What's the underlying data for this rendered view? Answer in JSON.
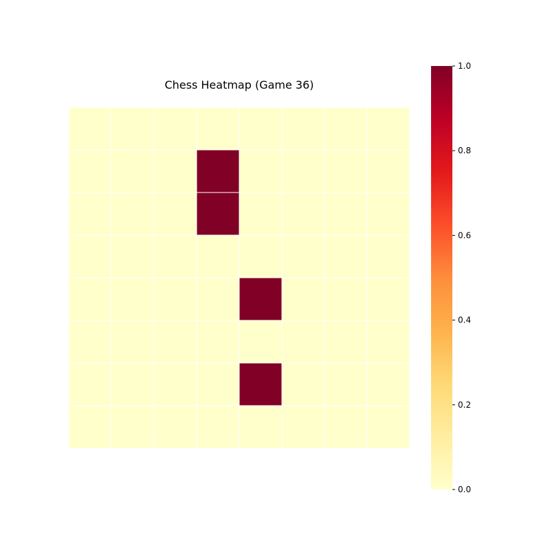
{
  "chart_data": {
    "type": "heatmap",
    "title": "Chess Heatmap (Game 36)",
    "rows": 8,
    "cols": 8,
    "values": [
      [
        0,
        0,
        0,
        0,
        0,
        0,
        0,
        0
      ],
      [
        0,
        0,
        0,
        1,
        0,
        0,
        0,
        0
      ],
      [
        0,
        0,
        0,
        1,
        0,
        0,
        0,
        0
      ],
      [
        0,
        0,
        0,
        0,
        0,
        0,
        0,
        0
      ],
      [
        0,
        0,
        0,
        0,
        1,
        0,
        0,
        0
      ],
      [
        0,
        0,
        0,
        0,
        0,
        0,
        0,
        0
      ],
      [
        0,
        0,
        0,
        0,
        1,
        0,
        0,
        0
      ],
      [
        0,
        0,
        0,
        0,
        0,
        0,
        0,
        0
      ]
    ],
    "colormap": "YlOrRd",
    "colormap_stops": [
      "#ffffcc",
      "#ffeda0",
      "#fed976",
      "#feb24c",
      "#fd8d3c",
      "#fc4e2a",
      "#e31a1c",
      "#bd0026",
      "#800026"
    ],
    "value_range": [
      0,
      1
    ],
    "colorbar": {
      "ticks": [
        0.0,
        0.2,
        0.4,
        0.6,
        0.8,
        1.0
      ],
      "tick_labels": [
        "0.0",
        "0.2",
        "0.4",
        "0.6",
        "0.8",
        "1.0"
      ]
    },
    "cell_border_color": "#ffffff",
    "axes_visible": false
  }
}
